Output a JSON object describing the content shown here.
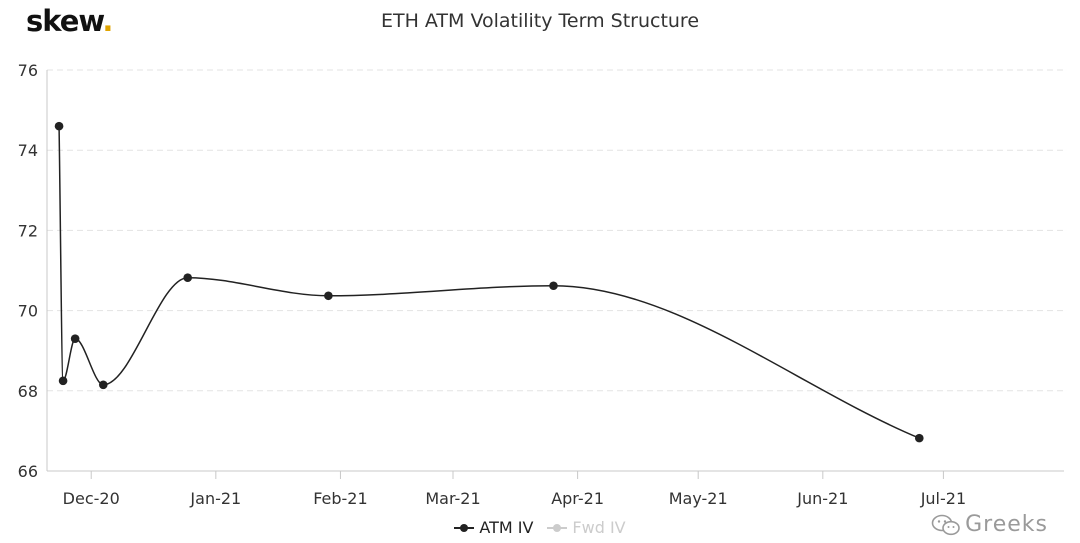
{
  "brand": {
    "name": "skew",
    "dot": "."
  },
  "watermark": {
    "text": "Greeks",
    "icon": "wechat-icon"
  },
  "colors": {
    "atm": "#222222",
    "fwd": "#cccccc",
    "grid": "#e3e3e3",
    "axis": "#c8c8c8",
    "brand_dot": "#e0a400"
  },
  "chart_data": {
    "type": "line",
    "title": "ETH ATM Volatility Term Structure",
    "xlabel": "",
    "ylabel": "",
    "x_axis": "date",
    "xlim": [
      "2020-11-20",
      "2021-07-31"
    ],
    "ylim": [
      66,
      76
    ],
    "yticks": [
      66,
      68,
      70,
      72,
      74,
      76
    ],
    "xticks": [
      {
        "label": "Dec-20",
        "date": "2020-12-01"
      },
      {
        "label": "Jan-21",
        "date": "2021-01-01"
      },
      {
        "label": "Feb-21",
        "date": "2021-02-01"
      },
      {
        "label": "Mar-21",
        "date": "2021-03-01"
      },
      {
        "label": "Apr-21",
        "date": "2021-04-01"
      },
      {
        "label": "May-21",
        "date": "2021-05-01"
      },
      {
        "label": "Jun-21",
        "date": "2021-06-01"
      },
      {
        "label": "Jul-21",
        "date": "2021-07-01"
      }
    ],
    "grid": {
      "y": true,
      "x": false
    },
    "legend_position": "bottom-center",
    "series": [
      {
        "name": "ATM IV",
        "active": true,
        "points": [
          {
            "x": "2020-11-23",
            "y": 74.6
          },
          {
            "x": "2020-11-24",
            "y": 68.25
          },
          {
            "x": "2020-11-27",
            "y": 69.3
          },
          {
            "x": "2020-12-04",
            "y": 68.15
          },
          {
            "x": "2020-12-25",
            "y": 70.82
          },
          {
            "x": "2021-01-29",
            "y": 70.37
          },
          {
            "x": "2021-03-26",
            "y": 70.62
          },
          {
            "x": "2021-06-25",
            "y": 66.82
          }
        ]
      },
      {
        "name": "Fwd IV",
        "active": false,
        "points": []
      }
    ]
  }
}
